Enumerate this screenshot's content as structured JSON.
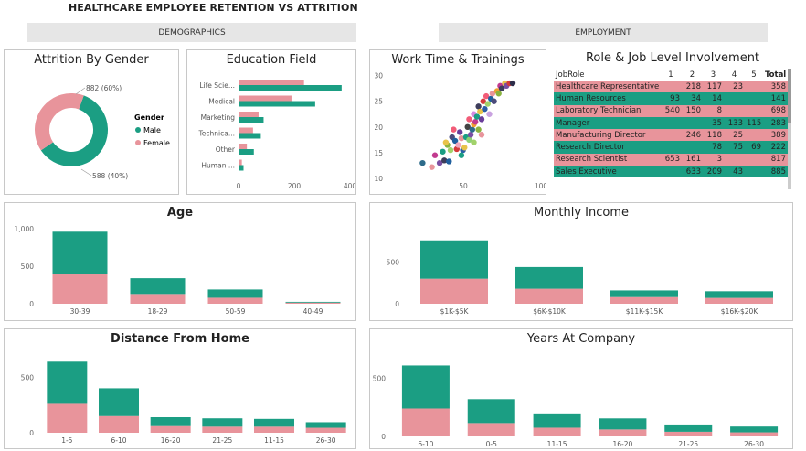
{
  "header": {
    "title": "HEALTHCARE EMPLOYEE RETENTION VS ATTRITION"
  },
  "sections": {
    "demographics": "DEMOGRAPHICS",
    "employment": "EMPLOYMENT"
  },
  "colors": {
    "teal": "#1b9e83",
    "pink": "#e8949b"
  },
  "chart_data": [
    {
      "id": "gender",
      "type": "pie",
      "title": "Attrition By Gender",
      "legend_title": "Gender",
      "legend_position": "right",
      "categories": [
        "Male",
        "Female"
      ],
      "values": [
        882,
        588
      ],
      "labels": [
        "882 (60%)",
        "588 (40%)"
      ]
    },
    {
      "id": "education",
      "type": "bar",
      "title": "Education Field",
      "categories": [
        "Life Scie...",
        "Medical",
        "Marketing",
        "Technica...",
        "Other",
        "Human ..."
      ],
      "series": [
        {
          "values": [
            235,
            190,
            72,
            52,
            30,
            12
          ]
        },
        {
          "values": [
            370,
            275,
            90,
            80,
            55,
            18
          ]
        }
      ],
      "xticks": [
        "0",
        "200",
        "400"
      ],
      "xlim": [
        0,
        400
      ]
    },
    {
      "id": "worktime",
      "type": "scatter",
      "title": "Work Time & Trainings",
      "xticks": [
        "50",
        "100"
      ],
      "yticks": [
        "10",
        "15",
        "20",
        "25",
        "30"
      ],
      "xlim": [
        0,
        100
      ],
      "ylim": [
        10,
        31
      ],
      "points": [
        [
          22,
          13,
          "#2d6b8a"
        ],
        [
          28,
          12.2,
          "#e8949b"
        ],
        [
          30,
          14.5,
          "#c23a8e"
        ],
        [
          33,
          13,
          "#7a4ea3"
        ],
        [
          35,
          15.2,
          "#1b9e83"
        ],
        [
          36,
          13.5,
          "#3d3d5c"
        ],
        [
          38,
          16.5,
          "#8ab340"
        ],
        [
          40,
          15.5,
          "#a2d26b"
        ],
        [
          41,
          18,
          "#4b4b7a"
        ],
        [
          43,
          17.3,
          "#1f5f9e"
        ],
        [
          44,
          15.7,
          "#d43a3a"
        ],
        [
          45,
          16.5,
          "#f0a8c0"
        ],
        [
          46,
          19,
          "#6a3d9a"
        ],
        [
          47,
          17.8,
          "#e8949b"
        ],
        [
          48,
          15.5,
          "#2b5ea7"
        ],
        [
          49,
          16,
          "#e8c34a"
        ],
        [
          50,
          18,
          "#1b9e83"
        ],
        [
          51,
          20,
          "#444"
        ],
        [
          52,
          21.5,
          "#f25c78"
        ],
        [
          52,
          17.5,
          "#8fd175"
        ],
        [
          53,
          18.5,
          "#7a4ea3"
        ],
        [
          54,
          19.5,
          "#2d6b8a"
        ],
        [
          55,
          22.5,
          "#d48ae0"
        ],
        [
          55,
          20.5,
          "#f0a030"
        ],
        [
          56,
          21,
          "#c23a8e"
        ],
        [
          57,
          22,
          "#1b9e83"
        ],
        [
          58,
          19.5,
          "#8ab340"
        ],
        [
          58,
          24,
          "#3d3d5c"
        ],
        [
          59,
          23,
          "#e8c34a"
        ],
        [
          60,
          21.5,
          "#6a3d9a"
        ],
        [
          61,
          25,
          "#d43a3a"
        ],
        [
          62,
          23.5,
          "#2b5ea7"
        ],
        [
          63,
          26,
          "#f25c78"
        ],
        [
          64,
          24.5,
          "#a2d26b"
        ],
        [
          65,
          22.5,
          "#c9a2e0"
        ],
        [
          66,
          25.5,
          "#1f5f9e"
        ],
        [
          67,
          26.5,
          "#e8949b"
        ],
        [
          68,
          25,
          "#4b4b7a"
        ],
        [
          70,
          27,
          "#f0a030"
        ],
        [
          71,
          26.5,
          "#8ab340"
        ],
        [
          72,
          28,
          "#c23a8e"
        ],
        [
          73,
          27.5,
          "#3d3d5c"
        ],
        [
          75,
          28.5,
          "#e8c34a"
        ],
        [
          76,
          28,
          "#7a4ea3"
        ],
        [
          78,
          28.5,
          "#d43a3a"
        ],
        [
          80,
          28.5,
          "#2d2d4a"
        ],
        [
          47,
          14.5,
          "#1b9e83"
        ],
        [
          42,
          19.5,
          "#f25c78"
        ],
        [
          37,
          17,
          "#e8c34a"
        ],
        [
          55,
          17,
          "#a2d26b"
        ],
        [
          39,
          13.3,
          "#1f5f9e"
        ],
        [
          60,
          18.5,
          "#e8949b"
        ]
      ]
    },
    {
      "id": "age",
      "type": "bar",
      "title": "Age",
      "stacked": true,
      "categories": [
        "30-39",
        "18-29",
        "50-59",
        "40-49"
      ],
      "series": [
        {
          "values": [
            390,
            130,
            80,
            15
          ]
        },
        {
          "values": [
            570,
            210,
            110,
            10
          ]
        }
      ],
      "yticks": [
        "1,000",
        "500",
        "0"
      ],
      "ylim": [
        0,
        1000
      ]
    },
    {
      "id": "income",
      "type": "bar",
      "title": "Monthly Income",
      "stacked": true,
      "categories": [
        "$1K-$5K",
        "$6K-$10K",
        "$11K-$15K",
        "$16K-$20K"
      ],
      "series": [
        {
          "values": [
            300,
            180,
            80,
            70
          ]
        },
        {
          "values": [
            460,
            260,
            80,
            80
          ]
        }
      ],
      "yticks": [
        "500",
        "0"
      ],
      "ylim": [
        0,
        900
      ]
    },
    {
      "id": "distance",
      "type": "bar",
      "title": "Distance From Home",
      "stacked": true,
      "categories": [
        "1-5",
        "6-10",
        "16-20",
        "21-25",
        "11-15",
        "26-30"
      ],
      "series": [
        {
          "values": [
            260,
            150,
            60,
            55,
            55,
            45
          ]
        },
        {
          "values": [
            380,
            250,
            80,
            75,
            70,
            50
          ]
        }
      ],
      "yticks": [
        "500",
        "0"
      ],
      "ylim": [
        0,
        700
      ]
    },
    {
      "id": "years",
      "type": "bar",
      "title": "Years At Company",
      "stacked": true,
      "categories": [
        "6-10",
        "0-5",
        "11-15",
        "16-20",
        "21-25",
        "26-30"
      ],
      "series": [
        {
          "values": [
            240,
            115,
            75,
            60,
            40,
            35
          ]
        },
        {
          "values": [
            370,
            205,
            115,
            95,
            55,
            50
          ]
        }
      ],
      "yticks": [
        "500",
        "0"
      ],
      "ylim": [
        0,
        700
      ]
    }
  ],
  "role_table": {
    "title": "Role & Job Level Involvement",
    "columns": [
      "JobRole",
      "1",
      "2",
      "3",
      "4",
      "5",
      "Total"
    ],
    "rows": [
      [
        "Healthcare Representative",
        "",
        "218",
        "117",
        "23",
        "",
        "358"
      ],
      [
        "Human Resources",
        "93",
        "34",
        "14",
        "",
        "",
        "141"
      ],
      [
        "Laboratory Technician",
        "540",
        "150",
        "8",
        "",
        "",
        "698"
      ],
      [
        "Manager",
        "",
        "",
        "35",
        "133",
        "115",
        "283"
      ],
      [
        "Manufacturing Director",
        "",
        "246",
        "118",
        "25",
        "",
        "389"
      ],
      [
        "Research Director",
        "",
        "",
        "78",
        "75",
        "69",
        "222"
      ],
      [
        "Research Scientist",
        "653",
        "161",
        "3",
        "",
        "",
        "817"
      ],
      [
        "Sales Executive",
        "",
        "633",
        "209",
        "43",
        "",
        "885"
      ]
    ],
    "row_colors": [
      "pink",
      "teal",
      "pink",
      "teal",
      "pink",
      "teal",
      "pink",
      "teal"
    ]
  }
}
